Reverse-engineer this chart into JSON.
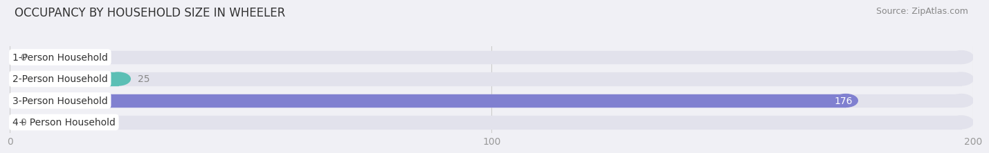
{
  "title": "OCCUPANCY BY HOUSEHOLD SIZE IN WHEELER",
  "source": "Source: ZipAtlas.com",
  "categories": [
    "1-Person Household",
    "2-Person Household",
    "3-Person Household",
    "4+ Person Household"
  ],
  "values": [
    0,
    25,
    176,
    0
  ],
  "bar_colors": [
    "#c9a8d4",
    "#5bbfb5",
    "#8080d0",
    "#f4a0b5"
  ],
  "background_color": "#f0f0f5",
  "bar_bg_color": "#e2e2ec",
  "xlim": [
    0,
    200
  ],
  "xticks": [
    0,
    100,
    200
  ],
  "title_fontsize": 12,
  "source_fontsize": 9,
  "label_fontsize": 10,
  "value_fontsize": 10
}
